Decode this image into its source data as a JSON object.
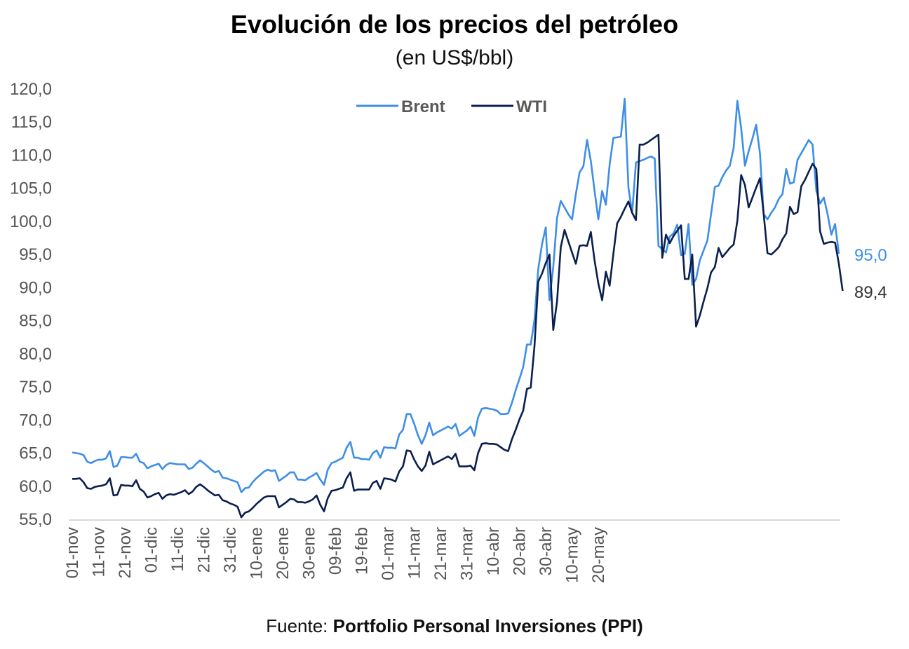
{
  "chart_data": {
    "type": "line",
    "title": "Evolución de los precios del petróleo",
    "subtitle": "(en US$/bbl)",
    "source_label": "Fuente:",
    "source_name": "Portfolio Personal Inversiones (PPI)",
    "ylim": [
      55,
      120
    ],
    "yticks": [
      "55,0",
      "60,0",
      "65,0",
      "70,0",
      "75,0",
      "80,0",
      "85,0",
      "90,0",
      "95,0",
      "100,0",
      "105,0",
      "110,0",
      "115,0",
      "120,0"
    ],
    "xticks": [
      "01-nov",
      "11-nov",
      "21-nov",
      "01-dic",
      "11-dic",
      "21-dic",
      "31-dic",
      "10-ene",
      "20-ene",
      "30-ene",
      "09-feb",
      "19-feb",
      "01-mar",
      "11-mar",
      "21-mar",
      "31-mar",
      "10-abr",
      "20-abr",
      "30-abr",
      "10-may",
      "20-may"
    ],
    "legend_position": "top-center",
    "series": [
      {
        "name": "Brent",
        "color": "#3d8ee8",
        "end_label": "95,0",
        "values": [
          65.0,
          64.9,
          64.8,
          64.6,
          63.6,
          63.4,
          63.7,
          63.9,
          63.9,
          64.1,
          65.2,
          62.8,
          63.0,
          64.3,
          64.3,
          64.2,
          64.2,
          64.8,
          63.6,
          63.4,
          62.6,
          62.9,
          63.1,
          63.3,
          62.5,
          63.1,
          63.4,
          63.3,
          63.2,
          63.2,
          63.2,
          62.5,
          62.7,
          63.3,
          63.8,
          63.4,
          62.9,
          62.4,
          62.0,
          62.2,
          61.2,
          61.1,
          60.9,
          60.7,
          60.5,
          59.0,
          59.6,
          59.7,
          60.5,
          61.1,
          61.6,
          62.1,
          62.4,
          62.2,
          62.3,
          60.7,
          61.1,
          61.5,
          62.0,
          62.0,
          60.9,
          60.9,
          60.8,
          61.2,
          61.5,
          61.9,
          60.9,
          60.1,
          62.4,
          63.4,
          63.6,
          63.9,
          64.2,
          65.7,
          66.6,
          64.2,
          64.2,
          64.0,
          64.0,
          63.9,
          64.9,
          65.3,
          64.2,
          65.8,
          65.7,
          65.7,
          65.6,
          67.7,
          68.4,
          70.8,
          70.8,
          69.3,
          67.6,
          66.3,
          67.6,
          69.5,
          67.6,
          68.0,
          68.3,
          68.6,
          68.9,
          68.6,
          69.3,
          67.5,
          67.9,
          68.3,
          68.9,
          67.5,
          70.3,
          71.6,
          71.7,
          71.6,
          71.5,
          71.3,
          70.8,
          70.8,
          70.9,
          72.5,
          74.4,
          76.1,
          77.9,
          81.3,
          81.3,
          85.0,
          92.7,
          96.4,
          99.0,
          88.0,
          93.0,
          100.4,
          103.0,
          102.0,
          101.0,
          100.2,
          104.0,
          107.3,
          108.2,
          112.2,
          109.0,
          104.5,
          100.2,
          104.5,
          102.4,
          108.5,
          112.5,
          112.6,
          112.7,
          118.4,
          105.0,
          101.2,
          108.8,
          109.0,
          109.2,
          109.5,
          109.7,
          109.4,
          96.2,
          95.7,
          95.2,
          97.6,
          98.1,
          99.4,
          94.8,
          95.0,
          99.5,
          90.3,
          91.2,
          94.0,
          95.5,
          97.0,
          101.0,
          105.1,
          105.3,
          106.6,
          107.6,
          108.3,
          111.0,
          118.1,
          114.0,
          108.3,
          110.5,
          112.4,
          114.5,
          110.2,
          101.0,
          100.2,
          101.2,
          102.0,
          103.3,
          104.0,
          107.8,
          105.6,
          105.8,
          109.2,
          110.2,
          111.2,
          112.2,
          111.5,
          104.5,
          102.6,
          103.5,
          101.0,
          97.9,
          99.5,
          95.0
        ]
      },
      {
        "name": "WTI",
        "color": "#0b1f4d",
        "end_label": "89,4",
        "values": [
          61.0,
          61.0,
          61.1,
          60.5,
          59.6,
          59.5,
          59.8,
          59.9,
          60.0,
          60.2,
          61.1,
          58.5,
          58.6,
          60.1,
          60.0,
          60.0,
          59.9,
          60.8,
          59.5,
          59.1,
          58.2,
          58.4,
          58.7,
          58.9,
          58.0,
          58.5,
          58.7,
          58.6,
          58.8,
          59.0,
          59.3,
          58.7,
          59.1,
          59.8,
          60.2,
          59.8,
          59.3,
          58.9,
          58.5,
          58.6,
          57.8,
          57.6,
          57.3,
          57.1,
          56.8,
          55.2,
          55.9,
          56.1,
          56.6,
          57.2,
          57.7,
          58.2,
          58.4,
          58.4,
          58.4,
          56.7,
          57.1,
          57.5,
          58.0,
          57.9,
          57.5,
          57.5,
          57.4,
          57.6,
          57.9,
          58.5,
          57.1,
          56.1,
          58.1,
          59.2,
          59.3,
          59.5,
          59.7,
          61.1,
          62.0,
          59.2,
          59.4,
          59.4,
          59.4,
          59.4,
          60.4,
          60.7,
          59.5,
          61.1,
          61.0,
          60.9,
          60.6,
          62.1,
          62.9,
          65.3,
          65.2,
          63.9,
          62.9,
          62.2,
          63.0,
          65.1,
          63.2,
          63.5,
          63.8,
          64.1,
          64.4,
          64.0,
          64.8,
          62.9,
          62.9,
          62.9,
          63.0,
          62.3,
          64.9,
          66.3,
          66.4,
          66.3,
          66.3,
          66.2,
          65.8,
          65.4,
          65.2,
          67.0,
          68.4,
          70.0,
          71.3,
          74.6,
          74.8,
          81.0,
          90.8,
          92.0,
          93.6,
          94.9,
          83.5,
          87.8,
          96.0,
          98.6,
          96.9,
          95.2,
          93.5,
          96.2,
          96.3,
          96.2,
          98.3,
          94.0,
          90.5,
          88.0,
          92.3,
          90.2,
          95.0,
          99.6,
          100.6,
          101.8,
          102.9,
          101.2,
          100.1,
          111.5,
          111.5,
          111.8,
          112.2,
          112.6,
          113.0,
          94.4,
          97.9,
          96.6,
          97.7,
          98.5,
          99.3,
          91.2,
          91.2,
          94.9,
          84.0,
          85.7,
          87.8,
          89.8,
          92.2,
          93.0,
          95.9,
          94.5,
          95.2,
          95.9,
          96.4,
          100.0,
          106.9,
          105.4,
          102.0,
          103.5,
          105.0,
          106.4,
          101.0,
          95.1,
          94.9,
          95.4,
          96.0,
          97.2,
          98.1,
          102.1,
          101.0,
          101.3,
          105.2,
          106.2,
          107.4,
          108.6,
          107.8,
          98.4,
          96.5,
          96.7,
          96.8,
          96.7,
          93.5,
          89.4
        ]
      }
    ]
  }
}
